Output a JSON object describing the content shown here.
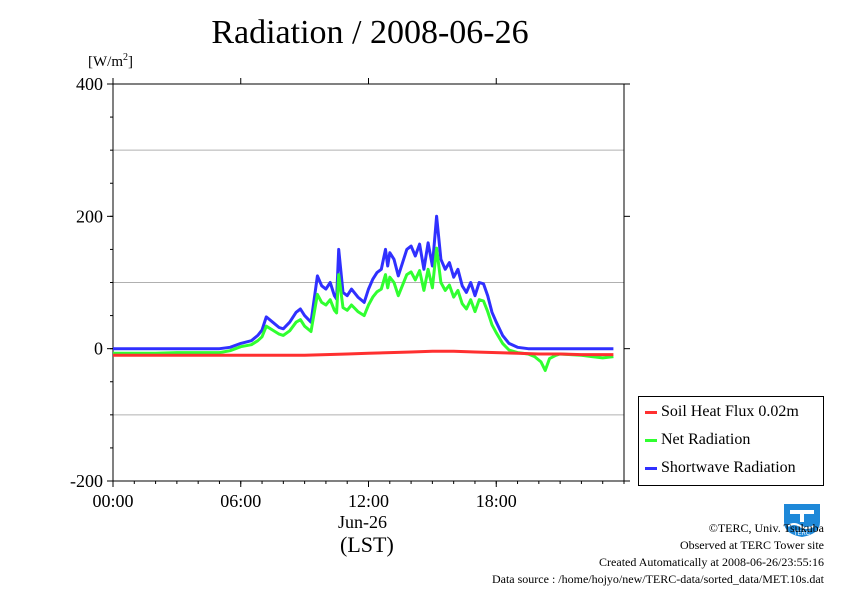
{
  "chart_data": {
    "type": "line",
    "title": "Radiation / 2008-06-26",
    "ylabel_unit": "[W/m2]",
    "ylim": [
      -200,
      400
    ],
    "yticks": [
      "400",
      "200",
      "0",
      "-200"
    ],
    "y_minor_grid": [
      -100,
      100,
      300
    ],
    "xlim_hours": [
      0,
      24
    ],
    "xticks": [
      "00:00",
      "06:00",
      "12:00",
      "18:00"
    ],
    "xdate": "Jun-26",
    "xlabel": "(LST)",
    "grid": true,
    "legend_position": "bottom-right outside",
    "series": [
      {
        "name": "Shortwave Radiation",
        "color": "#3030ff",
        "points": [
          [
            0,
            0
          ],
          [
            1,
            0
          ],
          [
            2,
            0
          ],
          [
            3,
            0
          ],
          [
            4,
            0
          ],
          [
            5,
            0
          ],
          [
            5.5,
            2
          ],
          [
            6,
            8
          ],
          [
            6.5,
            12
          ],
          [
            6.8,
            20
          ],
          [
            7,
            28
          ],
          [
            7.2,
            48
          ],
          [
            7.5,
            40
          ],
          [
            7.8,
            32
          ],
          [
            8,
            30
          ],
          [
            8.3,
            40
          ],
          [
            8.6,
            55
          ],
          [
            8.8,
            60
          ],
          [
            9,
            50
          ],
          [
            9.3,
            40
          ],
          [
            9.6,
            110
          ],
          [
            9.8,
            95
          ],
          [
            10,
            90
          ],
          [
            10.2,
            100
          ],
          [
            10.4,
            80
          ],
          [
            10.5,
            75
          ],
          [
            10.6,
            150
          ],
          [
            10.8,
            85
          ],
          [
            11,
            80
          ],
          [
            11.2,
            90
          ],
          [
            11.5,
            78
          ],
          [
            11.8,
            70
          ],
          [
            12,
            90
          ],
          [
            12.2,
            105
          ],
          [
            12.4,
            115
          ],
          [
            12.6,
            120
          ],
          [
            12.8,
            150
          ],
          [
            12.9,
            125
          ],
          [
            13,
            145
          ],
          [
            13.2,
            135
          ],
          [
            13.4,
            110
          ],
          [
            13.6,
            130
          ],
          [
            13.8,
            150
          ],
          [
            14,
            155
          ],
          [
            14.2,
            140
          ],
          [
            14.4,
            158
          ],
          [
            14.6,
            120
          ],
          [
            14.8,
            160
          ],
          [
            15,
            125
          ],
          [
            15.2,
            200
          ],
          [
            15.4,
            135
          ],
          [
            15.6,
            120
          ],
          [
            15.8,
            130
          ],
          [
            16,
            108
          ],
          [
            16.2,
            120
          ],
          [
            16.4,
            95
          ],
          [
            16.6,
            85
          ],
          [
            16.8,
            100
          ],
          [
            17,
            80
          ],
          [
            17.2,
            100
          ],
          [
            17.4,
            98
          ],
          [
            17.6,
            80
          ],
          [
            17.8,
            55
          ],
          [
            18,
            40
          ],
          [
            18.3,
            20
          ],
          [
            18.6,
            8
          ],
          [
            19,
            2
          ],
          [
            19.5,
            0
          ],
          [
            20,
            0
          ],
          [
            21,
            0
          ],
          [
            22,
            0
          ],
          [
            23,
            0
          ],
          [
            23.5,
            0
          ]
        ]
      },
      {
        "name": "Net Radiation",
        "color": "#30ff30",
        "points": [
          [
            0,
            -7
          ],
          [
            1,
            -7
          ],
          [
            2,
            -7
          ],
          [
            3,
            -6
          ],
          [
            4,
            -6
          ],
          [
            5,
            -6
          ],
          [
            5.5,
            -3
          ],
          [
            6,
            3
          ],
          [
            6.5,
            6
          ],
          [
            6.8,
            12
          ],
          [
            7,
            18
          ],
          [
            7.2,
            34
          ],
          [
            7.5,
            28
          ],
          [
            7.8,
            22
          ],
          [
            8,
            20
          ],
          [
            8.3,
            27
          ],
          [
            8.6,
            40
          ],
          [
            8.8,
            44
          ],
          [
            9,
            34
          ],
          [
            9.3,
            26
          ],
          [
            9.6,
            82
          ],
          [
            9.8,
            70
          ],
          [
            10,
            66
          ],
          [
            10.2,
            74
          ],
          [
            10.4,
            58
          ],
          [
            10.5,
            54
          ],
          [
            10.6,
            112
          ],
          [
            10.8,
            62
          ],
          [
            11,
            58
          ],
          [
            11.2,
            66
          ],
          [
            11.5,
            56
          ],
          [
            11.8,
            50
          ],
          [
            12,
            66
          ],
          [
            12.2,
            78
          ],
          [
            12.4,
            86
          ],
          [
            12.6,
            90
          ],
          [
            12.8,
            112
          ],
          [
            12.9,
            92
          ],
          [
            13,
            108
          ],
          [
            13.2,
            100
          ],
          [
            13.4,
            80
          ],
          [
            13.6,
            96
          ],
          [
            13.8,
            112
          ],
          [
            14,
            116
          ],
          [
            14.2,
            104
          ],
          [
            14.4,
            118
          ],
          [
            14.6,
            88
          ],
          [
            14.8,
            120
          ],
          [
            15,
            92
          ],
          [
            15.2,
            152
          ],
          [
            15.4,
            100
          ],
          [
            15.6,
            88
          ],
          [
            15.8,
            96
          ],
          [
            16,
            78
          ],
          [
            16.2,
            88
          ],
          [
            16.4,
            68
          ],
          [
            16.6,
            60
          ],
          [
            16.8,
            74
          ],
          [
            17,
            56
          ],
          [
            17.2,
            74
          ],
          [
            17.4,
            72
          ],
          [
            17.6,
            56
          ],
          [
            17.8,
            36
          ],
          [
            18,
            24
          ],
          [
            18.3,
            8
          ],
          [
            18.6,
            -2
          ],
          [
            19,
            -6
          ],
          [
            19.5,
            -8
          ],
          [
            19.8,
            -12
          ],
          [
            20.1,
            -20
          ],
          [
            20.3,
            -33
          ],
          [
            20.5,
            -15
          ],
          [
            20.8,
            -10
          ],
          [
            21,
            -8
          ],
          [
            22,
            -10
          ],
          [
            22.5,
            -12
          ],
          [
            23,
            -14
          ],
          [
            23.5,
            -12
          ]
        ]
      },
      {
        "name": "Soil Heat Flux 0.02m",
        "color": "#ff3030",
        "points": [
          [
            0,
            -10
          ],
          [
            2,
            -10
          ],
          [
            4,
            -10
          ],
          [
            6,
            -10
          ],
          [
            8,
            -10
          ],
          [
            9,
            -10
          ],
          [
            10,
            -9
          ],
          [
            11,
            -8
          ],
          [
            12,
            -7
          ],
          [
            13,
            -6
          ],
          [
            14,
            -5
          ],
          [
            15,
            -4
          ],
          [
            16,
            -4
          ],
          [
            17,
            -5
          ],
          [
            18,
            -6
          ],
          [
            19,
            -7
          ],
          [
            20,
            -8
          ],
          [
            21,
            -8
          ],
          [
            22,
            -9
          ],
          [
            23,
            -9
          ],
          [
            23.5,
            -9
          ]
        ]
      }
    ]
  },
  "credits": {
    "copyright": "©TERC, Univ. Tsukuba",
    "observed": "Observed at TERC Tower site",
    "created": "Created Automatically at 2008-06-26/23:55:16",
    "source": "Data source : /home/hojyo/new/TERC-data/sorted_data/MET.10s.dat"
  },
  "logo_text": "TERC",
  "legend_items": [
    {
      "label": "Soil Heat Flux 0.02m",
      "color": "#ff3030"
    },
    {
      "label": "Net Radiation",
      "color": "#30ff30"
    },
    {
      "label": "Shortwave Radiation",
      "color": "#3030ff"
    }
  ]
}
